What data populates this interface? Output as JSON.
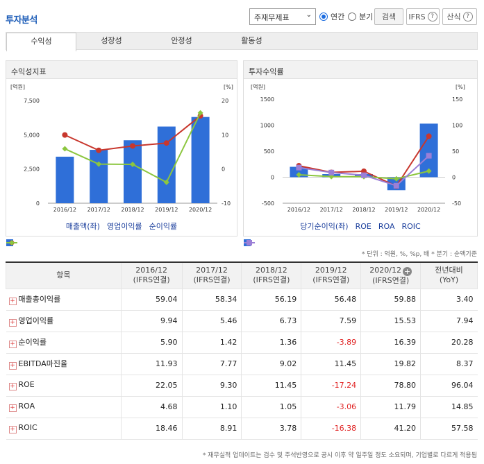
{
  "title": "투자분석",
  "controls": {
    "statement_select": "주재무제표",
    "radio_annual": "연간",
    "radio_quarter": "분기",
    "search_button": "검색",
    "ifrs_button": "IFRS",
    "formula_button": "산식"
  },
  "tabs": [
    "수익성",
    "성장성",
    "안정성",
    "활동성"
  ],
  "left_panel": {
    "title": "수익성지표",
    "unit_left": "[억원]",
    "unit_right": "[%]",
    "legend": [
      "매출액(좌)",
      "영업이익률",
      "순이익률"
    ]
  },
  "right_panel": {
    "title": "투자수익률",
    "unit_left": "[억원]",
    "unit_right": "[%]",
    "legend": [
      "당기순이익(좌)",
      "ROE",
      "ROA",
      "ROIC"
    ]
  },
  "colors": {
    "bar": "#2f6fd8",
    "line_red": "#c8372d",
    "line_green": "#8cc63f",
    "line_purple": "#9b7fd6"
  },
  "chart_data": [
    {
      "type": "bar",
      "categories": [
        "2016/12",
        "2017/12",
        "2018/12",
        "2019/12",
        "2020/12"
      ],
      "y_left_ticks": [
        "7,500",
        "5,000",
        "2,500",
        "0"
      ],
      "y_right_ticks": [
        "20",
        "10",
        "0",
        "-10"
      ],
      "ylim_left": [
        0,
        7500
      ],
      "ylim_right": [
        -10,
        20
      ],
      "bars": {
        "name": "매출액(좌)",
        "values": [
          3400,
          3900,
          4600,
          5600,
          6300
        ]
      },
      "series": [
        {
          "name": "영업이익률",
          "values": [
            9.94,
            5.46,
            6.73,
            7.59,
            15.53
          ]
        },
        {
          "name": "순이익률",
          "values": [
            5.9,
            1.42,
            1.36,
            -3.89,
            16.39
          ]
        }
      ]
    },
    {
      "type": "bar",
      "categories": [
        "2016/12",
        "2017/12",
        "2018/12",
        "2019/12",
        "2020/12"
      ],
      "y_left_ticks": [
        "1500",
        "1000",
        "500",
        "0",
        "-500"
      ],
      "y_right_ticks": [
        "150",
        "100",
        "50",
        "0",
        "-50"
      ],
      "ylim_left": [
        -500,
        1500
      ],
      "ylim_right": [
        -50,
        150
      ],
      "bars": {
        "name": "당기순이익(좌)",
        "values": [
          200,
          60,
          60,
          -250,
          1030
        ]
      },
      "series": [
        {
          "name": "ROE",
          "values": [
            22.05,
            9.3,
            11.45,
            -17.24,
            78.8
          ]
        },
        {
          "name": "ROA",
          "values": [
            4.68,
            1.1,
            1.05,
            -3.06,
            11.79
          ]
        },
        {
          "name": "ROIC",
          "values": [
            18.46,
            8.91,
            3.78,
            -16.38,
            41.2
          ]
        }
      ]
    }
  ],
  "unit_note": "* 단위 : 억원, %, %p, 배  * 분기 : 순액기준",
  "table": {
    "header_item": "항목",
    "periods": [
      "2016/12",
      "2017/12",
      "2018/12",
      "2019/12",
      "2020/12"
    ],
    "period_sub": "(IFRS연결)",
    "yoy_header": "전년대비",
    "yoy_sub": "(YoY)",
    "rows": [
      {
        "name": "매출총이익률",
        "values": [
          "59.04",
          "58.34",
          "56.19",
          "56.48",
          "59.88",
          "3.40"
        ]
      },
      {
        "name": "영업이익률",
        "values": [
          "9.94",
          "5.46",
          "6.73",
          "7.59",
          "15.53",
          "7.94"
        ]
      },
      {
        "name": "순이익률",
        "values": [
          "5.90",
          "1.42",
          "1.36",
          "-3.89",
          "16.39",
          "20.28"
        ]
      },
      {
        "name": "EBITDA마진율",
        "values": [
          "11.93",
          "7.77",
          "9.02",
          "11.45",
          "19.82",
          "8.37"
        ]
      },
      {
        "name": "ROE",
        "values": [
          "22.05",
          "9.30",
          "11.45",
          "-17.24",
          "78.80",
          "96.04"
        ]
      },
      {
        "name": "ROA",
        "values": [
          "4.68",
          "1.10",
          "1.05",
          "-3.06",
          "11.79",
          "14.85"
        ]
      },
      {
        "name": "ROIC",
        "values": [
          "18.46",
          "8.91",
          "3.78",
          "-16.38",
          "41.20",
          "57.58"
        ]
      }
    ]
  },
  "footnote": "* 재무실적 업데이트는 검수 및 주석반영으로 공시 이후 약 일주일 정도 소요되며, 기업별로 다르게 적용됨"
}
